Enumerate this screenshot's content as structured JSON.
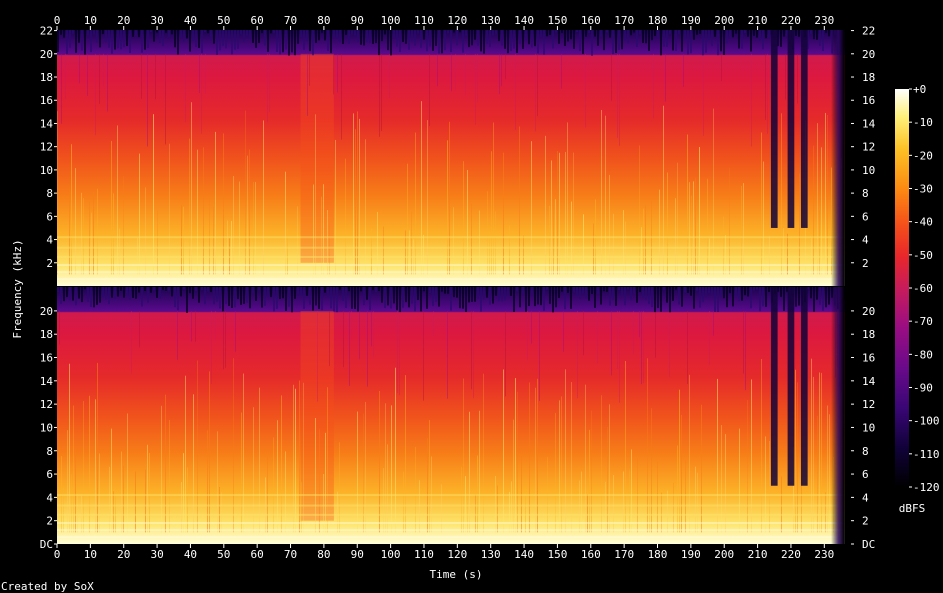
{
  "chart_data": {
    "type": "heatmap",
    "title": "",
    "xlabel": "Time (s)",
    "ylabel": "Frequency (kHz)",
    "colorbar_label": "dBFS",
    "credit": "Created by SoX",
    "xlim": [
      0,
      238
    ],
    "ylim": [
      0,
      22.05
    ],
    "x_ticks": [
      "0",
      "10",
      "20",
      "30",
      "40",
      "50",
      "60",
      "70",
      "80",
      "90",
      "100",
      "110",
      "120",
      "130",
      "140",
      "150",
      "160",
      "170",
      "180",
      "190",
      "200",
      "210",
      "220",
      "230"
    ],
    "channels": [
      {
        "y_ticks": [
          "2",
          "4",
          "6",
          "8",
          "10",
          "12",
          "14",
          "16",
          "18",
          "20",
          "22"
        ]
      },
      {
        "y_ticks": [
          "DC",
          "2",
          "4",
          "6",
          "8",
          "10",
          "12",
          "14",
          "16",
          "18",
          "20"
        ]
      }
    ],
    "colorbar": {
      "range": [
        -120,
        0
      ],
      "ticks": [
        "+0",
        "-10",
        "-20",
        "-30",
        "-40",
        "-50",
        "-60",
        "-70",
        "-80",
        "-90",
        "-100",
        "-110",
        "-120"
      ],
      "colormap": [
        "#000000",
        "#11023a",
        "#3a0676",
        "#6a0a8a",
        "#9a0d82",
        "#c81c5a",
        "#e8272a",
        "#f5501a",
        "#fc8a12",
        "#fdc226",
        "#fef07a",
        "#ffffff"
      ]
    },
    "features": {
      "dense_content_cutoff_khz": 20,
      "bright_band_khz": [
        0,
        3
      ],
      "fade_out_start_s": 232,
      "end_of_audio_s": 236,
      "dark_gaps_s": [
        [
          214,
          216
        ],
        [
          219,
          221
        ],
        [
          223,
          225
        ]
      ],
      "loud_section_s": [
        73,
        83
      ]
    }
  }
}
